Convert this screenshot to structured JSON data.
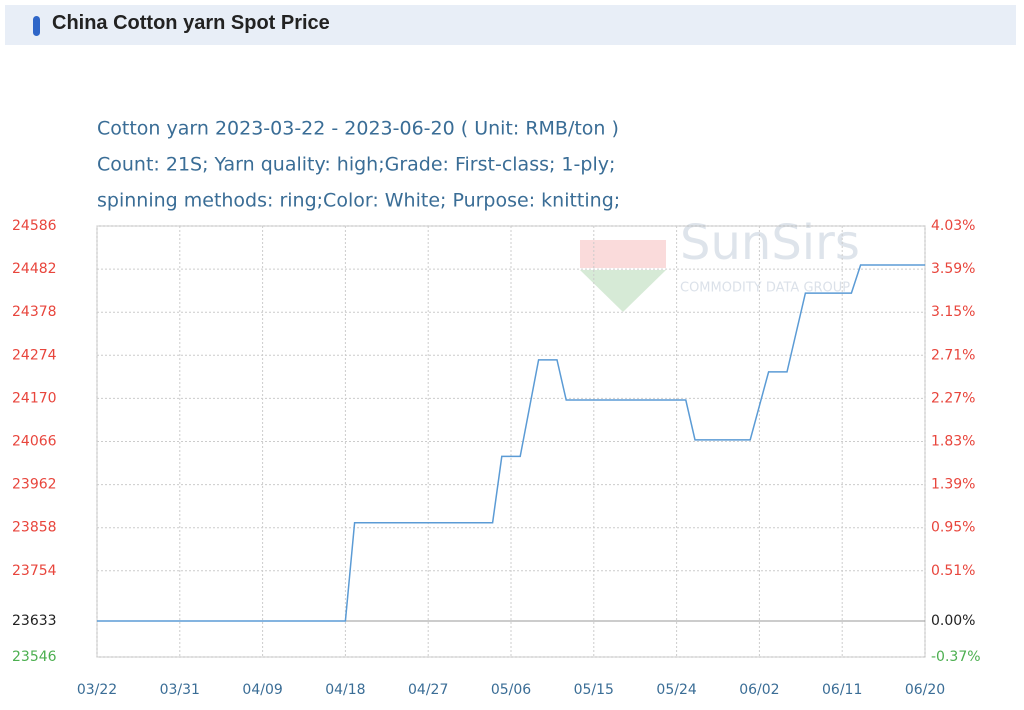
{
  "header": {
    "title": "China Cotton yarn Spot Price"
  },
  "chart_data": {
    "type": "line",
    "title_lines": [
      "Cotton yarn 2023-03-22 - 2023-06-20    ( Unit: RMB/ton )",
      "Count: 21S; Yarn quality: high;Grade: First-class; 1-ply;",
      "spinning methods: ring;Color: White; Purpose: knitting;"
    ],
    "watermark": "SunSirs",
    "watermark_sub": "COMMODITY DATA GROUP",
    "x": [
      "03/22",
      "04/18",
      "04/19",
      "05/04",
      "05/05",
      "05/07",
      "05/09",
      "05/11",
      "05/12",
      "05/25",
      "05/26",
      "06/01",
      "06/03",
      "06/05",
      "06/07",
      "06/12",
      "06/13",
      "06/20"
    ],
    "series": [
      {
        "name": "Cotton yarn",
        "color": "#5b9bd5",
        "values": [
          23633,
          23633,
          23870,
          23870,
          24030,
          24030,
          24263,
          24263,
          24166,
          24166,
          24070,
          24070,
          24234,
          24234,
          24424,
          24424,
          24492,
          24492
        ]
      }
    ],
    "xlim": [
      "03/22",
      "06/20"
    ],
    "xticks": [
      "03/22",
      "03/31",
      "04/09",
      "04/18",
      "04/27",
      "05/06",
      "05/15",
      "05/24",
      "06/02",
      "06/11",
      "06/20"
    ],
    "ylim": [
      23546,
      24586
    ],
    "yticks": [
      24586,
      24482,
      24378,
      24274,
      24170,
      24066,
      23962,
      23858,
      23754,
      23633,
      23546
    ],
    "ytick_colors": [
      "#e8453c",
      "#e8453c",
      "#e8453c",
      "#e8453c",
      "#e8453c",
      "#e8453c",
      "#e8453c",
      "#e8453c",
      "#e8453c",
      "#222222",
      "#4caf50"
    ],
    "y2lim": [
      -0.37,
      4.03
    ],
    "y2ticks": [
      {
        "value": 4.03,
        "label": "4.03%"
      },
      {
        "value": 3.59,
        "label": "3.59%"
      },
      {
        "value": 3.15,
        "label": "3.15%"
      },
      {
        "value": 2.71,
        "label": "2.71%"
      },
      {
        "value": 2.27,
        "label": "2.27%"
      },
      {
        "value": 1.83,
        "label": "1.83%"
      },
      {
        "value": 1.39,
        "label": "1.39%"
      },
      {
        "value": 0.95,
        "label": "0.95%"
      },
      {
        "value": 0.51,
        "label": "0.51%"
      },
      {
        "value": 0,
        "label": "0.00%"
      },
      {
        "value": -0.37,
        "label": "-0.37%"
      }
    ],
    "y2tick_colors": [
      "#e8453c",
      "#e8453c",
      "#e8453c",
      "#e8453c",
      "#e8453c",
      "#e8453c",
      "#e8453c",
      "#e8453c",
      "#e8453c",
      "#222222",
      "#4caf50"
    ],
    "grid": true
  }
}
